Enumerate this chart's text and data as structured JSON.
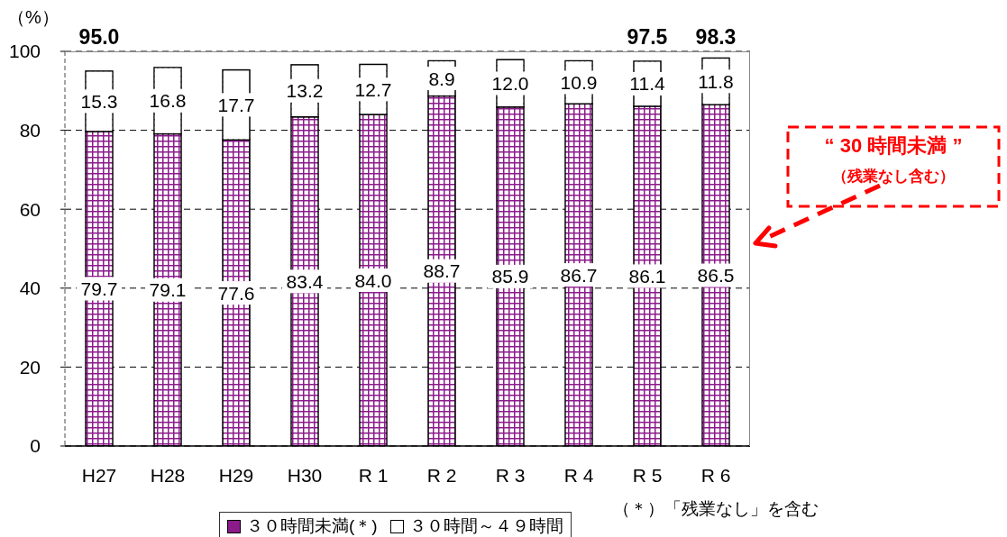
{
  "chart_data": {
    "type": "bar",
    "stacked": true,
    "ylabel": "（%）",
    "categories": [
      "H27",
      "H28",
      "H29",
      "H30",
      "R 1",
      "R 2",
      "R 3",
      "R 4",
      "R 5",
      "R 6"
    ],
    "series": [
      {
        "name": "３０時間未満(＊)",
        "color": "#8b1a8b",
        "values": [
          79.7,
          79.1,
          77.6,
          83.4,
          84.0,
          88.7,
          85.9,
          86.7,
          86.1,
          86.5
        ],
        "value_labels": [
          "79.7",
          "79.1",
          "77.6",
          "83.4",
          "84.0",
          "88.7",
          "85.9",
          "86.7",
          "86.1",
          "86.5"
        ]
      },
      {
        "name": "３０時間～４９時間",
        "color": "#ffffff",
        "values": [
          15.3,
          16.8,
          17.7,
          13.2,
          12.7,
          8.9,
          12.0,
          10.9,
          11.4,
          11.8
        ],
        "value_labels": [
          "15.3",
          "16.8",
          "17.7",
          "13.2",
          "12.7",
          "8.9",
          "12.0",
          "10.9",
          "11.4",
          "11.8"
        ]
      }
    ],
    "totals": [
      "95.0",
      null,
      null,
      null,
      null,
      null,
      null,
      null,
      "97.5",
      "98.3"
    ],
    "ylim": [
      0,
      100
    ],
    "yticks": [
      0,
      20,
      40,
      60,
      80,
      100
    ],
    "grid": "y",
    "legend": "bottom",
    "annotations": [
      "“ 30 時間未満 ”",
      "（残業なし含む）",
      "（＊）「残業なし」を含む"
    ]
  }
}
